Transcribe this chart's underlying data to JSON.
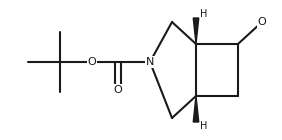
{
  "bg_color": "#ffffff",
  "line_color": "#1a1a1a",
  "lw": 1.5,
  "figsize": [
    2.82,
    1.4
  ],
  "dpi": 100,
  "xlim": [
    0,
    282
  ],
  "ylim": [
    0,
    140
  ]
}
